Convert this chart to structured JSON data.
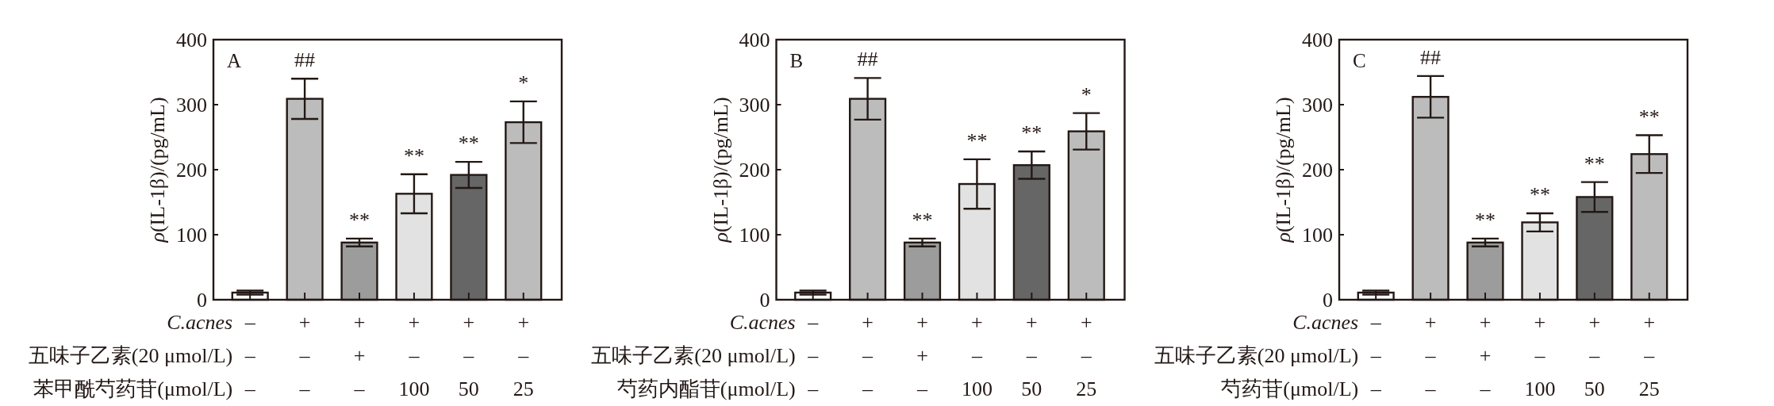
{
  "chart_data": [
    {
      "type": "bar",
      "ylabel": "*ρ*(IL-1β)/(pg/mL)",
      "ylim": [
        0,
        400
      ],
      "yticks": [
        0,
        100,
        200,
        300,
        400
      ],
      "categories": [
        "–\n–\n–",
        "+\n–\n–",
        "+\n+\n–",
        "+\n–\n100",
        "+\n–\n50",
        "+\n–\n25"
      ],
      "values": [
        11,
        309,
        88,
        163,
        192,
        273
      ],
      "errors": [
        3,
        31,
        6,
        30,
        20,
        32
      ],
      "colors": [
        "#ffffff",
        "#bcbcbc",
        "#9c9c9c",
        "#e2e2e2",
        "#666666",
        "#bcbcbc"
      ],
      "annotations": [
        "A",
        "C.acnes",
        "五味子乙素(20 μmol/L)",
        "苯甲酰芍药苷(μmol/L)",
        {
          "text": "##",
          "x": "+\n–\n–",
          "y": 309
        },
        {
          "text": "**",
          "x": "+\n+\n–",
          "y": 88
        },
        {
          "text": "**",
          "x": "+\n–\n100",
          "y": 163
        },
        {
          "text": "**",
          "x": "+\n–\n50",
          "y": 192
        },
        {
          "text": "*",
          "x": "+\n–\n25",
          "y": 273
        }
      ]
    },
    {
      "type": "bar",
      "ylabel": "*ρ*(IL-1β)/(pg/mL)",
      "ylim": [
        0,
        400
      ],
      "yticks": [
        0,
        100,
        200,
        300,
        400
      ],
      "categories": [
        "–\n–\n–",
        "+\n–\n–",
        "+\n+\n–",
        "+\n–\n100",
        "+\n–\n50",
        "+\n–\n25"
      ],
      "values": [
        11,
        309,
        88,
        178,
        207,
        259
      ],
      "errors": [
        3,
        32,
        6,
        38,
        21,
        28
      ],
      "colors": [
        "#ffffff",
        "#bcbcbc",
        "#9c9c9c",
        "#e2e2e2",
        "#666666",
        "#bcbcbc"
      ],
      "annotations": [
        "B",
        "C.acnes",
        "五味子乙素(20 μmol/L)",
        "芍药内酯苷(μmol/L)",
        {
          "text": "##",
          "x": "+\n–\n–",
          "y": 309
        },
        {
          "text": "**",
          "x": "+\n+\n–",
          "y": 88
        },
        {
          "text": "**",
          "x": "+\n–\n100",
          "y": 178
        },
        {
          "text": "**",
          "x": "+\n–\n50",
          "y": 207
        },
        {
          "text": "*",
          "x": "+\n–\n25",
          "y": 259
        }
      ]
    },
    {
      "type": "bar",
      "ylabel": "*ρ*(IL-1β)/(pg/mL)",
      "ylim": [
        0,
        400
      ],
      "yticks": [
        0,
        100,
        200,
        300,
        400
      ],
      "categories": [
        "–\n–\n–",
        "+\n–\n–",
        "+\n+\n–",
        "+\n–\n100",
        "+\n–\n50",
        "+\n–\n25"
      ],
      "values": [
        11,
        312,
        88,
        119,
        158,
        224
      ],
      "errors": [
        3,
        32,
        6,
        14,
        23,
        29
      ],
      "colors": [
        "#ffffff",
        "#bcbcbc",
        "#9c9c9c",
        "#e2e2e2",
        "#666666",
        "#bcbcbc"
      ],
      "annotations": [
        "C",
        "C.acnes",
        "五味子乙素(20 μmol/L)",
        "芍药苷(μmol/L)",
        {
          "text": "##",
          "x": "+\n–\n–",
          "y": 312
        },
        {
          "text": "**",
          "x": "+\n+\n–",
          "y": 88
        },
        {
          "text": "**",
          "x": "+\n–\n100",
          "y": 119
        },
        {
          "text": "**",
          "x": "+\n–\n50",
          "y": 158
        },
        {
          "text": "**",
          "x": "+\n–\n25",
          "y": 224
        }
      ]
    }
  ]
}
